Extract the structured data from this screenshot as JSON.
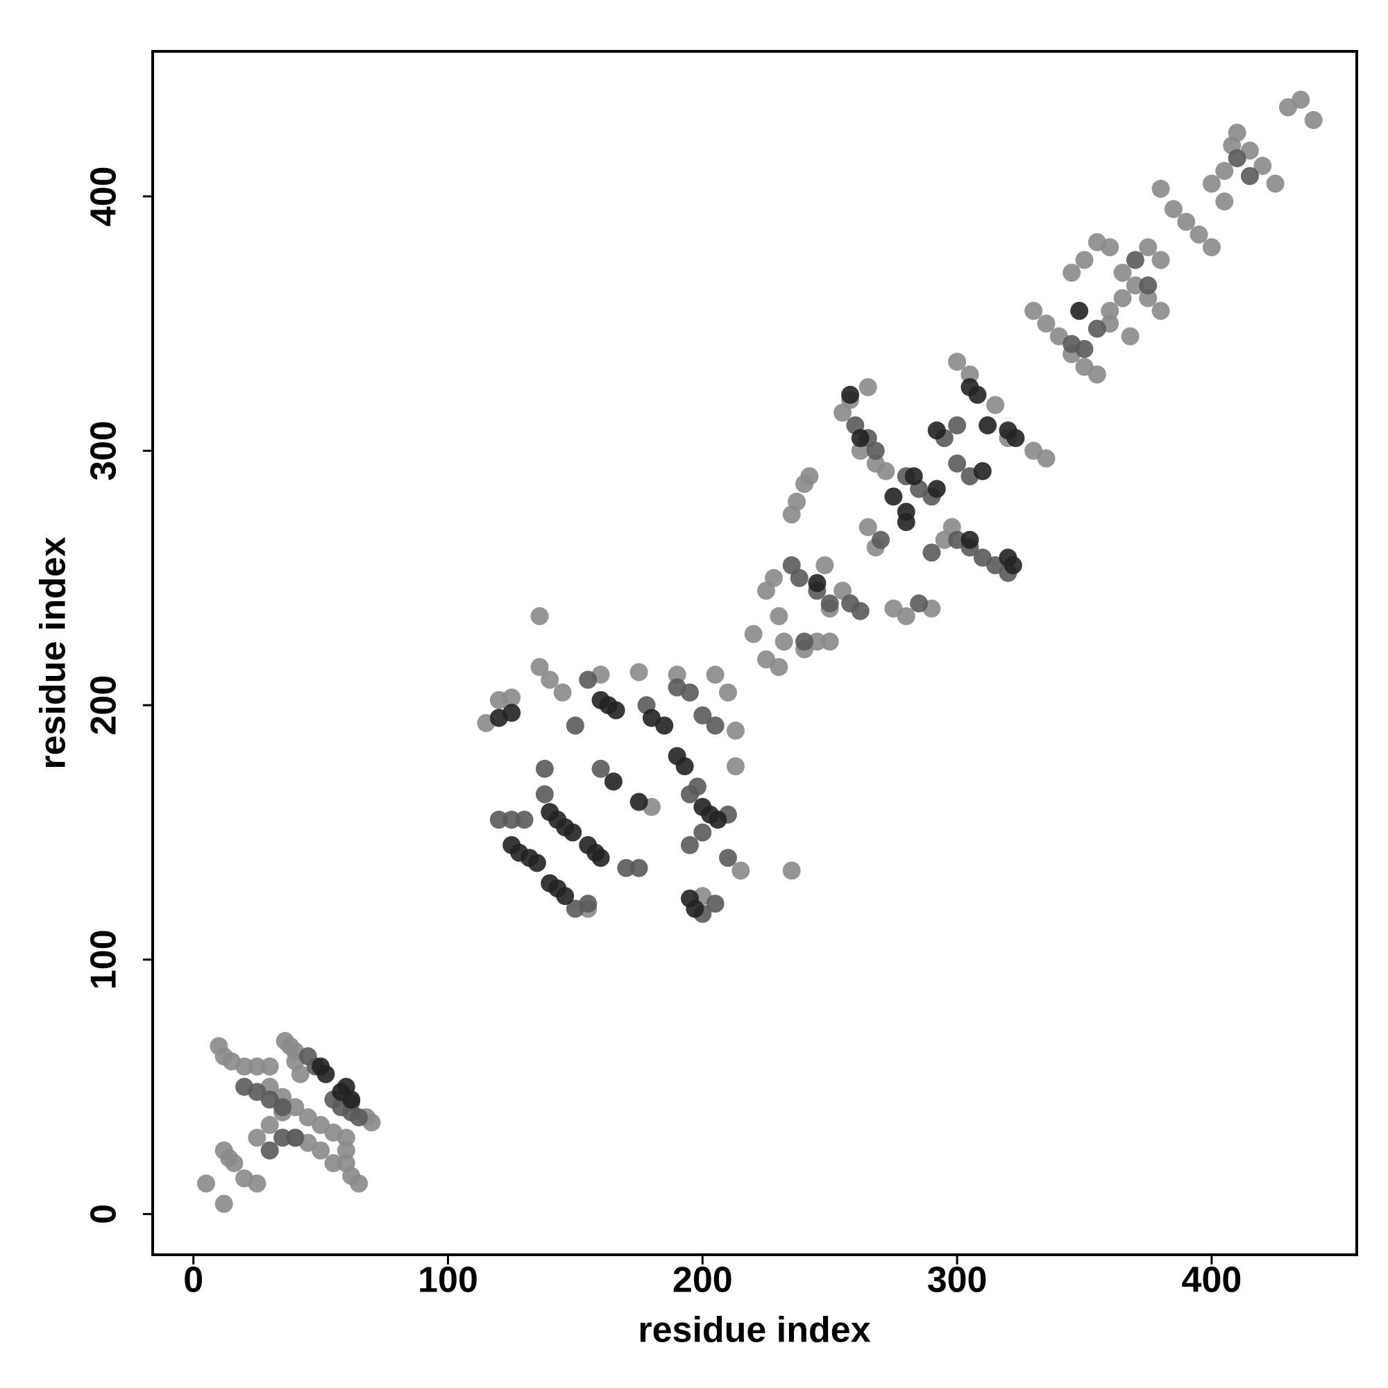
{
  "chart_data": {
    "type": "scatter",
    "xlabel": "residue index",
    "ylabel": "residue index",
    "xlim": [
      -16,
      457
    ],
    "ylim": [
      -16,
      457
    ],
    "xticks": [
      0,
      100,
      200,
      300,
      400
    ],
    "yticks": [
      0,
      100,
      200,
      300,
      400
    ],
    "series": [
      {
        "color": "#8a8a8a",
        "x": [
          10,
          12,
          15,
          20,
          25,
          30,
          36,
          38,
          40,
          12,
          14,
          16,
          20,
          25,
          5,
          12,
          60,
          60,
          60,
          62,
          65,
          68,
          70,
          30,
          35,
          40,
          45,
          50,
          55,
          40,
          45,
          50,
          55,
          40,
          42,
          35,
          30,
          25,
          115,
          120,
          125,
          136,
          136,
          140,
          145,
          160,
          175,
          190,
          205,
          210,
          213,
          213,
          215,
          235,
          180,
          155,
          200,
          220,
          225,
          228,
          230,
          232,
          225,
          230,
          240,
          245,
          250,
          235,
          237,
          240,
          242,
          248,
          255,
          250,
          255,
          258,
          265,
          262,
          268,
          272,
          275,
          280,
          290,
          295,
          298,
          300,
          305,
          315,
          320,
          330,
          335,
          265,
          268,
          330,
          335,
          340,
          345,
          350,
          355,
          345,
          350,
          355,
          360,
          365,
          370,
          375,
          380,
          360,
          368,
          375,
          380,
          385,
          390,
          395,
          400,
          405,
          408,
          410,
          415,
          420,
          425,
          430,
          435,
          440,
          405,
          400,
          380,
          360,
          365
        ],
        "y": [
          66,
          62,
          60,
          58,
          58,
          58,
          68,
          66,
          64,
          25,
          22,
          20,
          14,
          12,
          12,
          4,
          30,
          25,
          20,
          15,
          12,
          38,
          36,
          50,
          46,
          42,
          38,
          35,
          32,
          30,
          28,
          25,
          20,
          60,
          55,
          40,
          35,
          30,
          193,
          202,
          203,
          235,
          215,
          210,
          205,
          212,
          213,
          212,
          212,
          205,
          190,
          176,
          135,
          135,
          160,
          120,
          125,
          228,
          245,
          250,
          235,
          225,
          218,
          215,
          222,
          225,
          225,
          275,
          280,
          287,
          290,
          255,
          245,
          238,
          315,
          320,
          325,
          300,
          295,
          292,
          238,
          235,
          238,
          265,
          270,
          335,
          330,
          318,
          305,
          300,
          297,
          270,
          262,
          355,
          350,
          345,
          338,
          333,
          330,
          370,
          375,
          382,
          380,
          370,
          365,
          360,
          355,
          350,
          345,
          380,
          375,
          395,
          390,
          385,
          405,
          410,
          420,
          425,
          418,
          412,
          405,
          435,
          438,
          430,
          398,
          380,
          403,
          355,
          360
        ]
      },
      {
        "color": "#5a5a5a",
        "x": [
          20,
          25,
          30,
          35,
          45,
          48,
          55,
          58,
          62,
          65,
          40,
          35,
          30,
          62,
          120,
          125,
          130,
          138,
          138,
          150,
          155,
          160,
          170,
          175,
          178,
          190,
          195,
          200,
          205,
          195,
          200,
          210,
          210,
          150,
          155,
          200,
          205,
          198,
          195,
          235,
          238,
          245,
          250,
          258,
          262,
          260,
          265,
          268,
          280,
          285,
          290,
          295,
          300,
          305,
          300,
          305,
          310,
          315,
          320,
          290,
          285,
          270,
          240,
          300,
          345,
          350,
          370,
          375,
          355,
          410,
          415
        ],
        "y": [
          50,
          48,
          45,
          42,
          62,
          58,
          45,
          42,
          40,
          38,
          30,
          30,
          25,
          44,
          155,
          155,
          155,
          175,
          165,
          192,
          210,
          175,
          136,
          136,
          200,
          207,
          205,
          196,
          192,
          145,
          150,
          157,
          140,
          120,
          122,
          118,
          122,
          168,
          165,
          255,
          250,
          245,
          240,
          240,
          237,
          310,
          305,
          300,
          290,
          285,
          282,
          305,
          295,
          290,
          265,
          262,
          258,
          255,
          252,
          260,
          240,
          265,
          225,
          310,
          342,
          340,
          375,
          365,
          348,
          415,
          408
        ]
      },
      {
        "color": "#222222",
        "x": [
          50,
          52,
          58,
          60,
          62,
          125,
          128,
          132,
          135,
          140,
          143,
          146,
          149,
          155,
          158,
          160,
          140,
          143,
          146,
          160,
          163,
          166,
          165,
          175,
          180,
          185,
          190,
          193,
          200,
          203,
          206,
          195,
          197,
          120,
          125,
          258,
          262,
          275,
          280,
          283,
          292,
          305,
          308,
          312,
          320,
          323,
          305,
          322,
          320,
          292,
          310,
          280,
          245,
          348
        ],
        "y": [
          58,
          55,
          48,
          50,
          45,
          145,
          142,
          140,
          138,
          158,
          155,
          152,
          150,
          145,
          142,
          140,
          130,
          128,
          125,
          202,
          200,
          198,
          170,
          162,
          195,
          192,
          180,
          176,
          160,
          157,
          155,
          124,
          120,
          195,
          197,
          322,
          305,
          282,
          276,
          290,
          285,
          325,
          322,
          310,
          308,
          305,
          265,
          255,
          258,
          308,
          292,
          272,
          248,
          355
        ]
      }
    ]
  }
}
